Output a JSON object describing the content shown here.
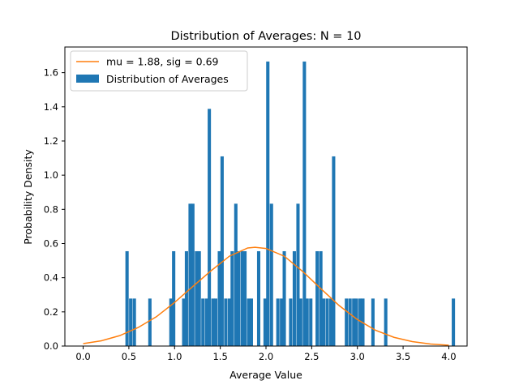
{
  "chart_data": {
    "type": "bar",
    "title": "Distribution of Averages: N = 10",
    "xlabel": "Average Value",
    "ylabel": "Probability Density",
    "xlim": [
      -0.2,
      4.2
    ],
    "ylim": [
      0,
      1.75
    ],
    "xticks": [
      "0.0",
      "0.5",
      "1.0",
      "1.5",
      "2.0",
      "2.5",
      "3.0",
      "3.5",
      "4.0"
    ],
    "yticks": [
      "0.0",
      "0.2",
      "0.4",
      "0.6",
      "0.8",
      "1.0",
      "1.2",
      "1.4",
      "1.6"
    ],
    "bin_width": 0.036,
    "legend": {
      "position": "upper left"
    },
    "series": [
      {
        "name": "mu = 1.88, sig = 0.69",
        "kind": "line",
        "color": "#ff7f0e",
        "x": [
          0.0,
          0.2,
          0.4,
          0.6,
          0.8,
          1.0,
          1.2,
          1.4,
          1.6,
          1.8,
          1.88,
          2.0,
          2.2,
          2.4,
          2.6,
          2.8,
          3.0,
          3.2,
          3.4,
          3.6,
          3.8,
          4.0
        ],
        "y": [
          0.014,
          0.031,
          0.061,
          0.108,
          0.171,
          0.255,
          0.349,
          0.441,
          0.526,
          0.574,
          0.578,
          0.571,
          0.526,
          0.437,
          0.336,
          0.237,
          0.155,
          0.092,
          0.051,
          0.026,
          0.012,
          0.005
        ]
      },
      {
        "name": "Distribution of Averages",
        "kind": "histogram",
        "color": "#1f77b4",
        "x": [
          0.48,
          0.52,
          0.56,
          0.73,
          0.96,
          0.99,
          1.1,
          1.13,
          1.17,
          1.2,
          1.24,
          1.27,
          1.31,
          1.35,
          1.38,
          1.42,
          1.45,
          1.49,
          1.52,
          1.56,
          1.6,
          1.63,
          1.67,
          1.7,
          1.74,
          1.77,
          1.81,
          1.84,
          1.92,
          1.99,
          2.02,
          2.06,
          2.13,
          2.17,
          2.2,
          2.27,
          2.31,
          2.35,
          2.38,
          2.42,
          2.45,
          2.49,
          2.56,
          2.6,
          2.63,
          2.67,
          2.71,
          2.74,
          2.88,
          2.92,
          2.96,
          2.99,
          3.03,
          3.06,
          3.17,
          3.31,
          4.05
        ],
        "y": [
          0.555,
          0.278,
          0.278,
          0.278,
          0.278,
          0.555,
          0.278,
          0.555,
          0.833,
          0.833,
          0.555,
          0.555,
          0.278,
          0.278,
          1.388,
          0.278,
          0.278,
          0.555,
          1.11,
          0.278,
          0.278,
          0.555,
          0.833,
          0.555,
          0.555,
          0.555,
          0.278,
          0.278,
          0.555,
          0.278,
          1.665,
          0.833,
          0.278,
          0.278,
          0.555,
          0.278,
          0.555,
          0.833,
          0.278,
          1.665,
          0.278,
          0.278,
          0.555,
          0.555,
          0.278,
          0.278,
          0.278,
          1.11,
          0.278,
          0.278,
          0.278,
          0.278,
          0.278,
          0.278,
          0.278,
          0.278,
          0.278
        ]
      }
    ]
  }
}
